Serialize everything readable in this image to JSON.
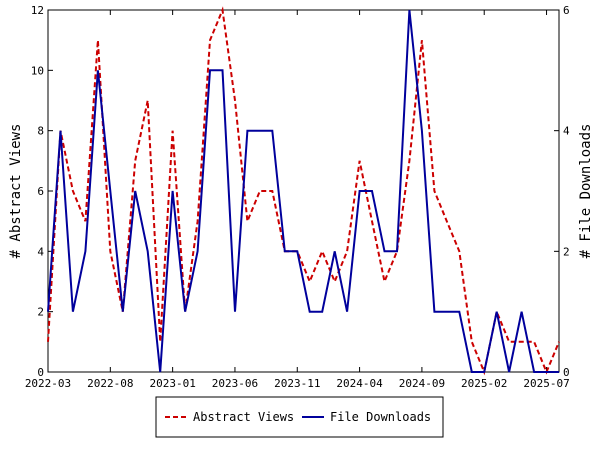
{
  "chart_data": {
    "type": "line",
    "ylabel": "# Abstract Views",
    "y2label": "# File Downloads",
    "x_tick_labels": [
      "2022-03",
      "2022-08",
      "2023-01",
      "2023-06",
      "2023-11",
      "2024-04",
      "2024-09",
      "2025-02",
      "2025-07"
    ],
    "x": [
      "2022-03",
      "2022-04",
      "2022-05",
      "2022-06",
      "2022-07",
      "2022-08",
      "2022-09",
      "2022-10",
      "2022-11",
      "2022-12",
      "2023-01",
      "2023-02",
      "2023-03",
      "2023-04",
      "2023-05",
      "2023-06",
      "2023-07",
      "2023-08",
      "2023-09",
      "2023-10",
      "2023-11",
      "2023-12",
      "2024-01",
      "2024-02",
      "2024-03",
      "2024-04",
      "2024-05",
      "2024-06",
      "2024-07",
      "2024-08",
      "2024-09",
      "2024-10",
      "2024-11",
      "2024-12",
      "2025-01",
      "2025-02",
      "2025-03",
      "2025-04",
      "2025-05",
      "2025-06",
      "2025-07",
      "2025-08"
    ],
    "ylim": [
      0,
      12
    ],
    "y_ticks": [
      0,
      2,
      4,
      6,
      8,
      10,
      12
    ],
    "y2lim": [
      0,
      6
    ],
    "y2_ticks": [
      0,
      2,
      4,
      6
    ],
    "legend_position": "bottom",
    "series": [
      {
        "name": "Abstract Views",
        "axis": "left",
        "style": "dashed",
        "color": "#cc0000",
        "values": [
          1,
          8,
          6,
          5,
          11,
          4,
          2,
          7,
          9,
          1,
          8,
          2,
          5,
          11,
          12,
          9,
          5,
          6,
          6,
          4,
          4,
          3,
          4,
          3,
          4,
          7,
          5,
          3,
          4,
          7,
          11,
          6,
          5,
          4,
          1,
          0,
          2,
          1,
          1,
          1,
          0,
          1
        ]
      },
      {
        "name": "File Downloads",
        "axis": "right",
        "style": "solid",
        "color": "#00009c",
        "values": [
          1,
          4,
          1,
          2,
          5,
          3,
          1,
          3,
          2,
          0,
          3,
          1,
          2,
          5,
          5,
          1,
          4,
          4,
          4,
          2,
          2,
          1,
          1,
          2,
          1,
          3,
          3,
          2,
          2,
          6,
          4,
          1,
          1,
          1,
          0,
          0,
          1,
          0,
          1,
          0,
          0,
          0
        ]
      }
    ]
  }
}
